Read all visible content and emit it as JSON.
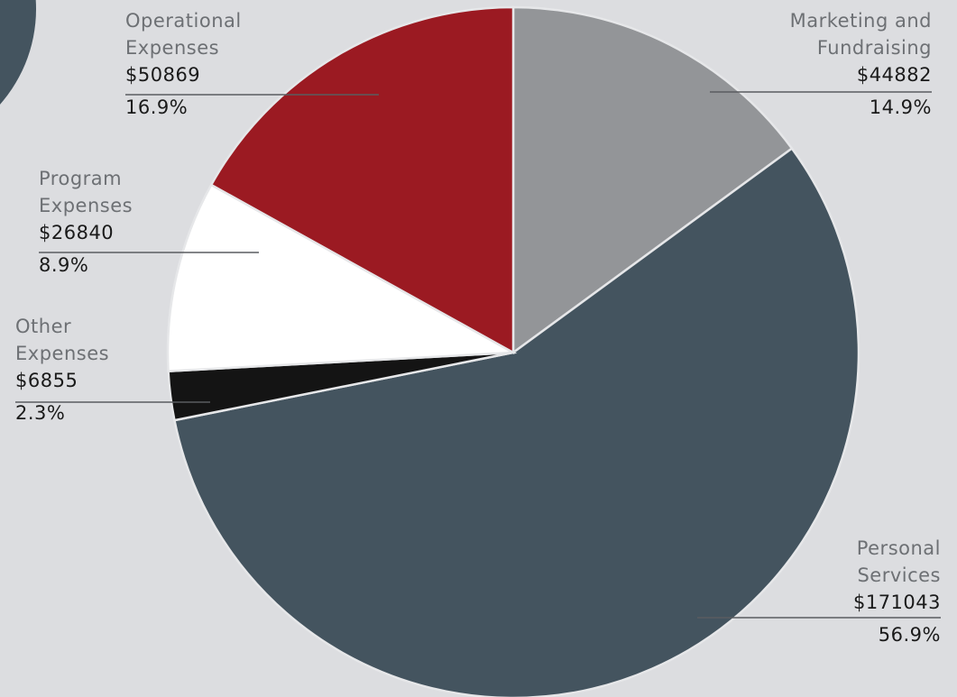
{
  "chart_data": {
    "type": "pie",
    "categories": [
      "Marketing and Fundraising",
      "Personal Services",
      "Other Expenses",
      "Program Expenses",
      "Operational Expenses"
    ],
    "values": [
      44882,
      171043,
      6855,
      26840,
      50869
    ],
    "value_labels": [
      "$44882",
      "$171043",
      "$6855",
      "$26840",
      "$50869"
    ],
    "percents": [
      14.9,
      56.9,
      2.3,
      8.9,
      16.9
    ],
    "percent_labels": [
      "14.9%",
      "56.9%",
      "2.3%",
      "8.9%",
      "16.9%"
    ],
    "colors": [
      "#939598",
      "#44545f",
      "#141414",
      "#ffffff",
      "#9b1a22"
    ]
  }
}
